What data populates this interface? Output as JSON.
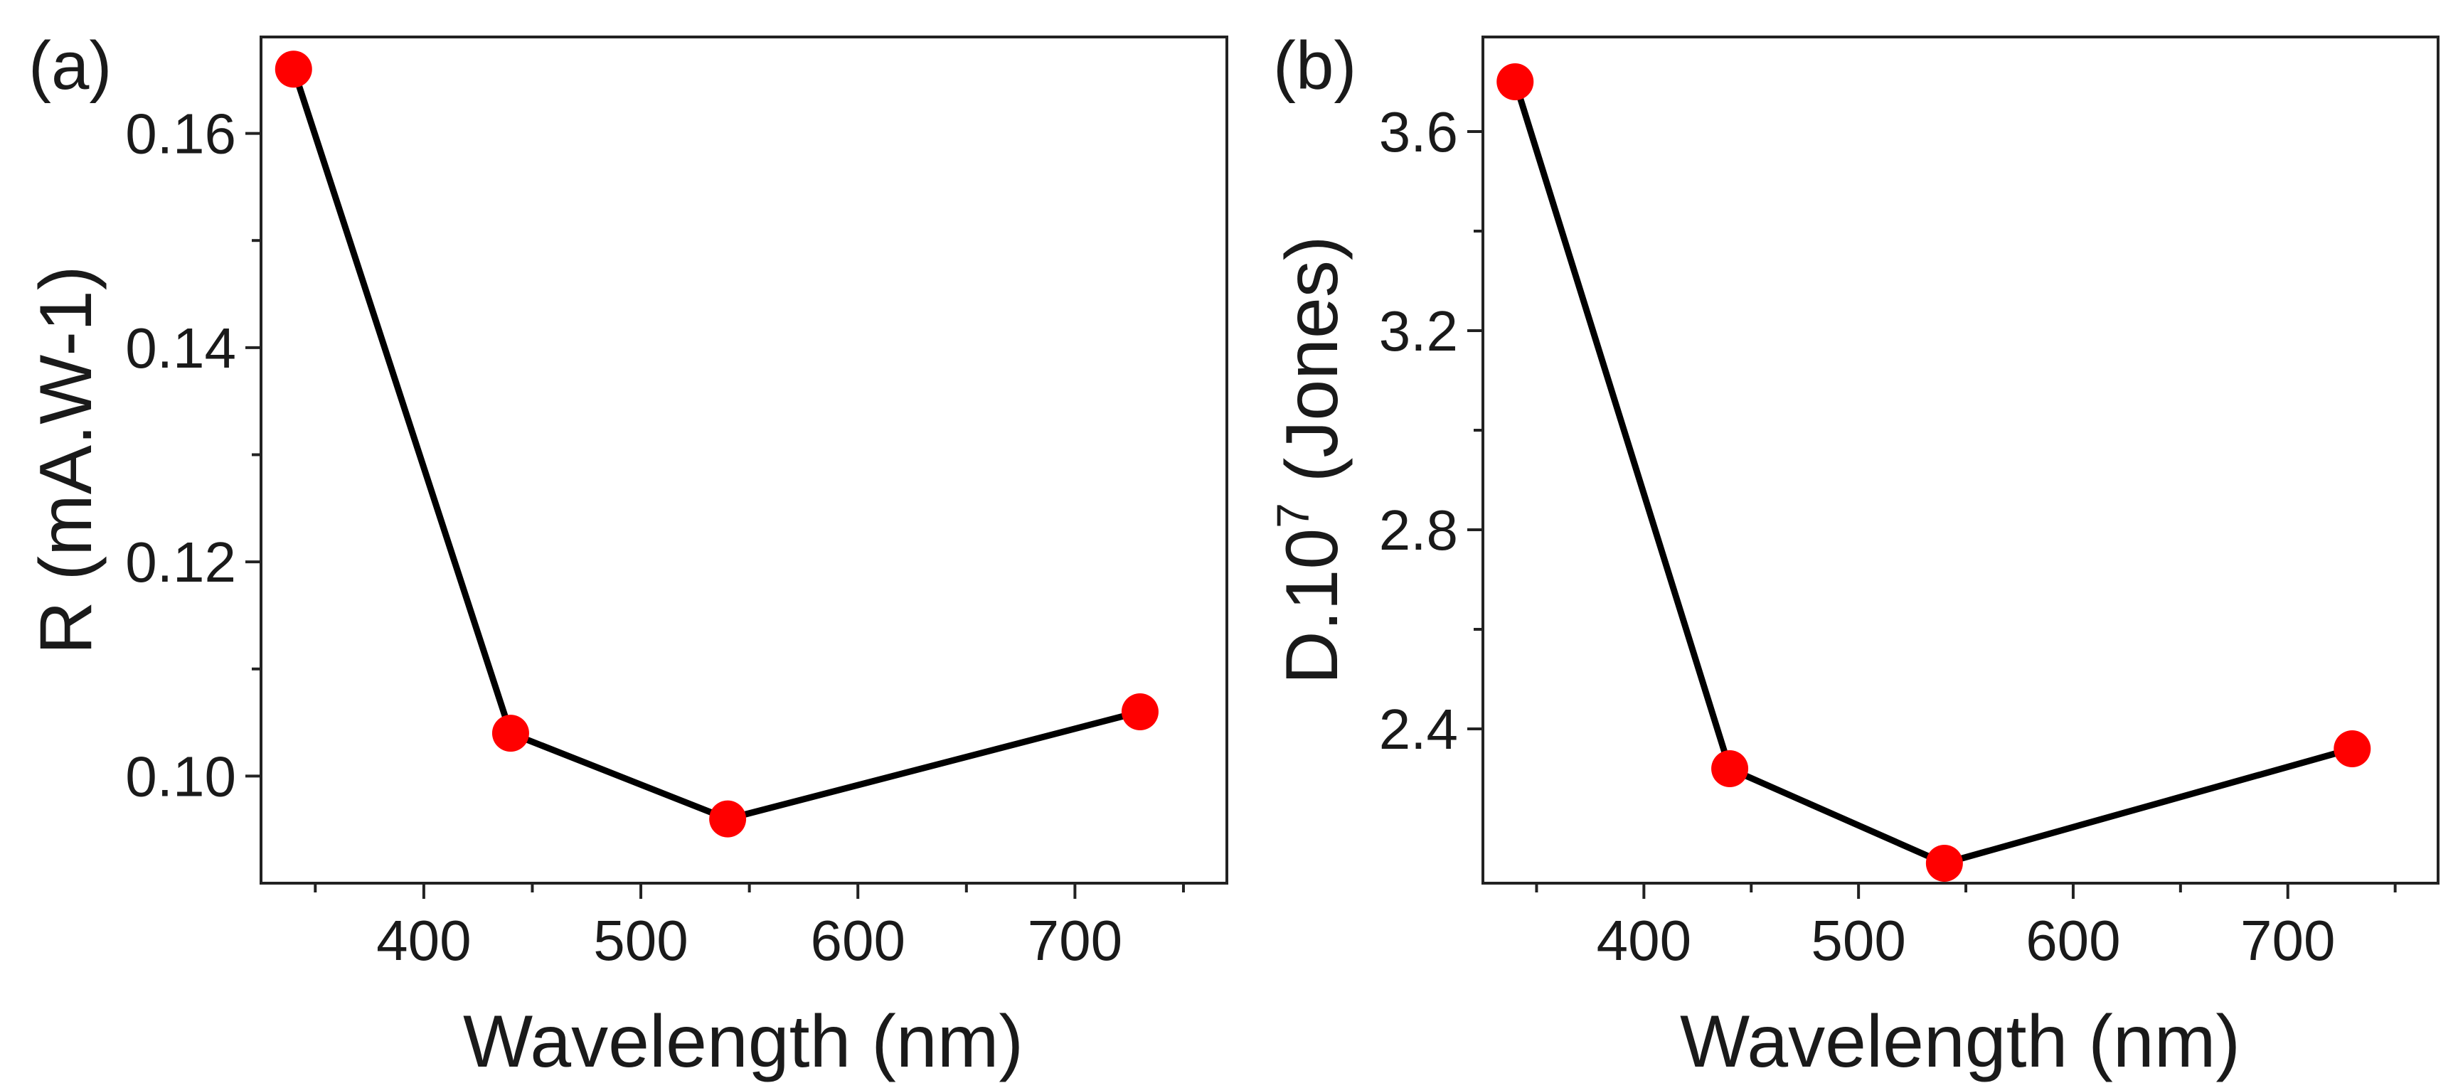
{
  "colors": {
    "line": "#000000",
    "marker": "#ff0000",
    "frame": "#222222",
    "background": "#ffffff"
  },
  "chart_data": [
    {
      "type": "line",
      "panel_label": "(a)",
      "xlabel": "Wavelength (nm)",
      "ylabel": "R (mA.W-1)",
      "x": [
        340,
        440,
        540,
        730
      ],
      "series": [
        {
          "name": "R",
          "values": [
            0.166,
            0.104,
            0.096,
            0.106
          ]
        }
      ],
      "xlim": [
        325,
        770
      ],
      "ylim": [
        0.09,
        0.169
      ],
      "xticks": [
        400,
        500,
        600,
        700
      ],
      "xtick_labels": [
        "400",
        "500",
        "600",
        "700"
      ],
      "xminor": [
        350,
        450,
        550,
        650,
        750
      ],
      "yticks": [
        0.1,
        0.12,
        0.14,
        0.16
      ],
      "ytick_labels": [
        "0.10",
        "0.12",
        "0.14",
        "0.16"
      ],
      "yminor": [
        0.11,
        0.13,
        0.15
      ],
      "grid": false
    },
    {
      "type": "line",
      "panel_label": "(b)",
      "xlabel": "Wavelength (nm)",
      "ylabel_base": "D.10",
      "ylabel_exp": "7",
      "ylabel_unit": " (Jones)",
      "x": [
        340,
        440,
        540,
        730
      ],
      "series": [
        {
          "name": "D",
          "values": [
            3.7,
            2.32,
            2.13,
            2.36
          ]
        }
      ],
      "xlim": [
        325,
        770
      ],
      "ylim": [
        2.09,
        3.79
      ],
      "xticks": [
        400,
        500,
        600,
        700
      ],
      "xtick_labels": [
        "400",
        "500",
        "600",
        "700"
      ],
      "xminor": [
        350,
        450,
        550,
        650,
        750
      ],
      "yticks": [
        2.4,
        2.8,
        3.2,
        3.6
      ],
      "ytick_labels": [
        "2.4",
        "2.8",
        "3.2",
        "3.6"
      ],
      "yminor": [
        2.6,
        3.0,
        3.4
      ],
      "grid": false
    }
  ]
}
